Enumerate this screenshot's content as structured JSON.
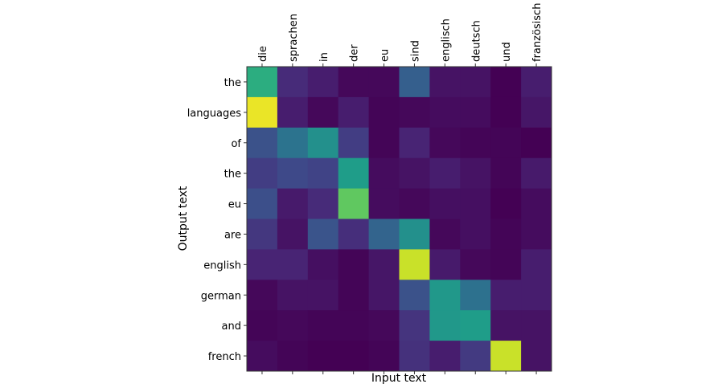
{
  "chart_data": {
    "type": "heatmap",
    "title": "",
    "xlabel": "Input text",
    "ylabel": "Output text",
    "x_labels": [
      "die",
      "sprachen",
      "in",
      "der",
      "eu",
      "sind",
      "englisch",
      "deutsch",
      "und",
      "französisch"
    ],
    "y_labels": [
      "the",
      "languages",
      "of",
      "the",
      "eu",
      "are",
      "english",
      "german",
      "and",
      "french"
    ],
    "colormap": "viridis",
    "value_range": [
      0,
      1
    ],
    "values": [
      [
        0.62,
        0.12,
        0.08,
        0.02,
        0.02,
        0.3,
        0.05,
        0.05,
        0.0,
        0.08
      ],
      [
        0.97,
        0.08,
        0.02,
        0.08,
        0.01,
        0.02,
        0.03,
        0.03,
        0.0,
        0.06
      ],
      [
        0.25,
        0.38,
        0.5,
        0.18,
        0.01,
        0.1,
        0.02,
        0.01,
        0.01,
        0.0
      ],
      [
        0.18,
        0.22,
        0.2,
        0.55,
        0.03,
        0.05,
        0.08,
        0.05,
        0.01,
        0.07
      ],
      [
        0.24,
        0.07,
        0.12,
        0.75,
        0.03,
        0.02,
        0.04,
        0.04,
        0.0,
        0.03
      ],
      [
        0.16,
        0.05,
        0.26,
        0.13,
        0.32,
        0.5,
        0.02,
        0.04,
        0.01,
        0.03
      ],
      [
        0.1,
        0.1,
        0.04,
        0.01,
        0.06,
        0.92,
        0.07,
        0.02,
        0.01,
        0.08
      ],
      [
        0.02,
        0.05,
        0.05,
        0.01,
        0.06,
        0.25,
        0.53,
        0.37,
        0.08,
        0.08
      ],
      [
        0.01,
        0.02,
        0.01,
        0.01,
        0.02,
        0.15,
        0.53,
        0.55,
        0.05,
        0.05
      ],
      [
        0.03,
        0.01,
        0.0,
        0.0,
        0.01,
        0.14,
        0.08,
        0.17,
        0.92,
        0.05
      ]
    ]
  }
}
